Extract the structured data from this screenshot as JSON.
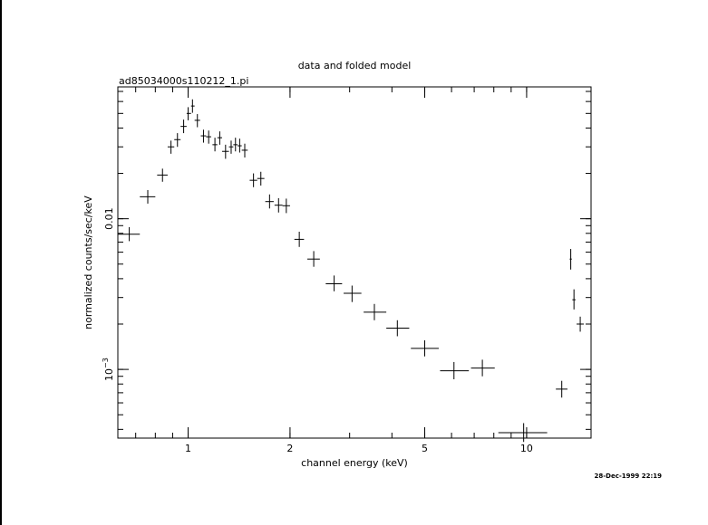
{
  "chart_data": {
    "type": "scatter",
    "title": "data and folded model",
    "subtitle": "ad85034000s110212_1.pi",
    "xlabel": "channel energy (keV)",
    "ylabel": "normalized counts/sec/keV",
    "x_scale": "log",
    "y_scale": "log",
    "xlim": [
      0.62,
      15.5
    ],
    "ylim": [
      0.00035,
      0.075
    ],
    "x_ticks": [
      {
        "value": 1,
        "label": "1"
      },
      {
        "value": 2,
        "label": "2"
      },
      {
        "value": 5,
        "label": "5"
      },
      {
        "value": 10,
        "label": "10"
      }
    ],
    "y_ticks": [
      {
        "value": 0.01,
        "label": "0.01"
      },
      {
        "value": 0.001,
        "label": "10",
        "sup": "−3"
      }
    ],
    "timestamp": "28-Dec-1999 22:19",
    "points": [
      {
        "x": 0.67,
        "xlo": 0.62,
        "xhi": 0.72,
        "y": 0.0079,
        "ylo": 0.0071,
        "yhi": 0.0088
      },
      {
        "x": 0.76,
        "xlo": 0.72,
        "xhi": 0.8,
        "y": 0.014,
        "ylo": 0.0126,
        "yhi": 0.0155
      },
      {
        "x": 0.84,
        "xlo": 0.81,
        "xhi": 0.87,
        "y": 0.0195,
        "ylo": 0.0176,
        "yhi": 0.0215
      },
      {
        "x": 0.89,
        "xlo": 0.87,
        "xhi": 0.91,
        "y": 0.03,
        "ylo": 0.027,
        "yhi": 0.033
      },
      {
        "x": 0.93,
        "xlo": 0.91,
        "xhi": 0.95,
        "y": 0.0335,
        "ylo": 0.03,
        "yhi": 0.037
      },
      {
        "x": 0.97,
        "xlo": 0.95,
        "xhi": 0.99,
        "y": 0.041,
        "ylo": 0.037,
        "yhi": 0.0455
      },
      {
        "x": 1.0,
        "xlo": 0.99,
        "xhi": 1.02,
        "y": 0.05,
        "ylo": 0.045,
        "yhi": 0.055
      },
      {
        "x": 1.03,
        "xlo": 1.02,
        "xhi": 1.045,
        "y": 0.056,
        "ylo": 0.0505,
        "yhi": 0.062
      },
      {
        "x": 1.065,
        "xlo": 1.045,
        "xhi": 1.085,
        "y": 0.045,
        "ylo": 0.0405,
        "yhi": 0.0495
      },
      {
        "x": 1.11,
        "xlo": 1.09,
        "xhi": 1.13,
        "y": 0.0355,
        "ylo": 0.032,
        "yhi": 0.039
      },
      {
        "x": 1.15,
        "xlo": 1.13,
        "xhi": 1.17,
        "y": 0.035,
        "ylo": 0.0315,
        "yhi": 0.0385
      },
      {
        "x": 1.2,
        "xlo": 1.18,
        "xhi": 1.22,
        "y": 0.031,
        "ylo": 0.028,
        "yhi": 0.0345
      },
      {
        "x": 1.24,
        "xlo": 1.22,
        "xhi": 1.26,
        "y": 0.0345,
        "ylo": 0.031,
        "yhi": 0.038
      },
      {
        "x": 1.29,
        "xlo": 1.26,
        "xhi": 1.32,
        "y": 0.028,
        "ylo": 0.025,
        "yhi": 0.031
      },
      {
        "x": 1.34,
        "xlo": 1.32,
        "xhi": 1.36,
        "y": 0.03,
        "ylo": 0.027,
        "yhi": 0.033
      },
      {
        "x": 1.38,
        "xlo": 1.36,
        "xhi": 1.4,
        "y": 0.031,
        "ylo": 0.028,
        "yhi": 0.0345
      },
      {
        "x": 1.42,
        "xlo": 1.4,
        "xhi": 1.44,
        "y": 0.0305,
        "ylo": 0.0275,
        "yhi": 0.034
      },
      {
        "x": 1.47,
        "xlo": 1.44,
        "xhi": 1.5,
        "y": 0.0285,
        "ylo": 0.0255,
        "yhi": 0.0315
      },
      {
        "x": 1.56,
        "xlo": 1.52,
        "xhi": 1.6,
        "y": 0.018,
        "ylo": 0.0162,
        "yhi": 0.02
      },
      {
        "x": 1.64,
        "xlo": 1.6,
        "xhi": 1.68,
        "y": 0.0185,
        "ylo": 0.0166,
        "yhi": 0.0205
      },
      {
        "x": 1.74,
        "xlo": 1.69,
        "xhi": 1.79,
        "y": 0.013,
        "ylo": 0.0117,
        "yhi": 0.0145
      },
      {
        "x": 1.85,
        "xlo": 1.8,
        "xhi": 1.9,
        "y": 0.0123,
        "ylo": 0.011,
        "yhi": 0.0137
      },
      {
        "x": 1.95,
        "xlo": 1.9,
        "xhi": 2.0,
        "y": 0.0122,
        "ylo": 0.0109,
        "yhi": 0.0136
      },
      {
        "x": 2.13,
        "xlo": 2.06,
        "xhi": 2.2,
        "y": 0.0073,
        "ylo": 0.0065,
        "yhi": 0.0082
      },
      {
        "x": 2.35,
        "xlo": 2.25,
        "xhi": 2.45,
        "y": 0.0054,
        "ylo": 0.0048,
        "yhi": 0.0061
      },
      {
        "x": 2.7,
        "xlo": 2.55,
        "xhi": 2.85,
        "y": 0.0037,
        "ylo": 0.0033,
        "yhi": 0.0042
      },
      {
        "x": 3.05,
        "xlo": 2.88,
        "xhi": 3.25,
        "y": 0.0032,
        "ylo": 0.0028,
        "yhi": 0.0036
      },
      {
        "x": 3.55,
        "xlo": 3.3,
        "xhi": 3.85,
        "y": 0.0024,
        "ylo": 0.00212,
        "yhi": 0.00272
      },
      {
        "x": 4.15,
        "xlo": 3.85,
        "xhi": 4.5,
        "y": 0.00188,
        "ylo": 0.00166,
        "yhi": 0.00212
      },
      {
        "x": 5.0,
        "xlo": 4.55,
        "xhi": 5.5,
        "y": 0.00138,
        "ylo": 0.00122,
        "yhi": 0.00156
      },
      {
        "x": 6.1,
        "xlo": 5.55,
        "xhi": 6.75,
        "y": 0.00098,
        "ylo": 0.00086,
        "yhi": 0.00112
      },
      {
        "x": 7.4,
        "xlo": 6.85,
        "xhi": 8.05,
        "y": 0.00102,
        "ylo": 0.0009,
        "yhi": 0.00116
      },
      {
        "x": 9.8,
        "xlo": 8.25,
        "xhi": 11.5,
        "y": 0.00038,
        "ylo": 0.00033,
        "yhi": 0.00044
      },
      {
        "x": 12.7,
        "xlo": 12.2,
        "xhi": 13.2,
        "y": 0.00074,
        "ylo": 0.00065,
        "yhi": 0.00084
      },
      {
        "x": 13.5,
        "xlo": 13.4,
        "xhi": 13.6,
        "y": 0.0054,
        "ylo": 0.0046,
        "yhi": 0.0063
      },
      {
        "x": 13.8,
        "xlo": 13.65,
        "xhi": 13.95,
        "y": 0.0029,
        "ylo": 0.0025,
        "yhi": 0.0034
      },
      {
        "x": 14.4,
        "xlo": 14.05,
        "xhi": 14.75,
        "y": 0.002,
        "ylo": 0.00178,
        "yhi": 0.00224
      }
    ]
  }
}
